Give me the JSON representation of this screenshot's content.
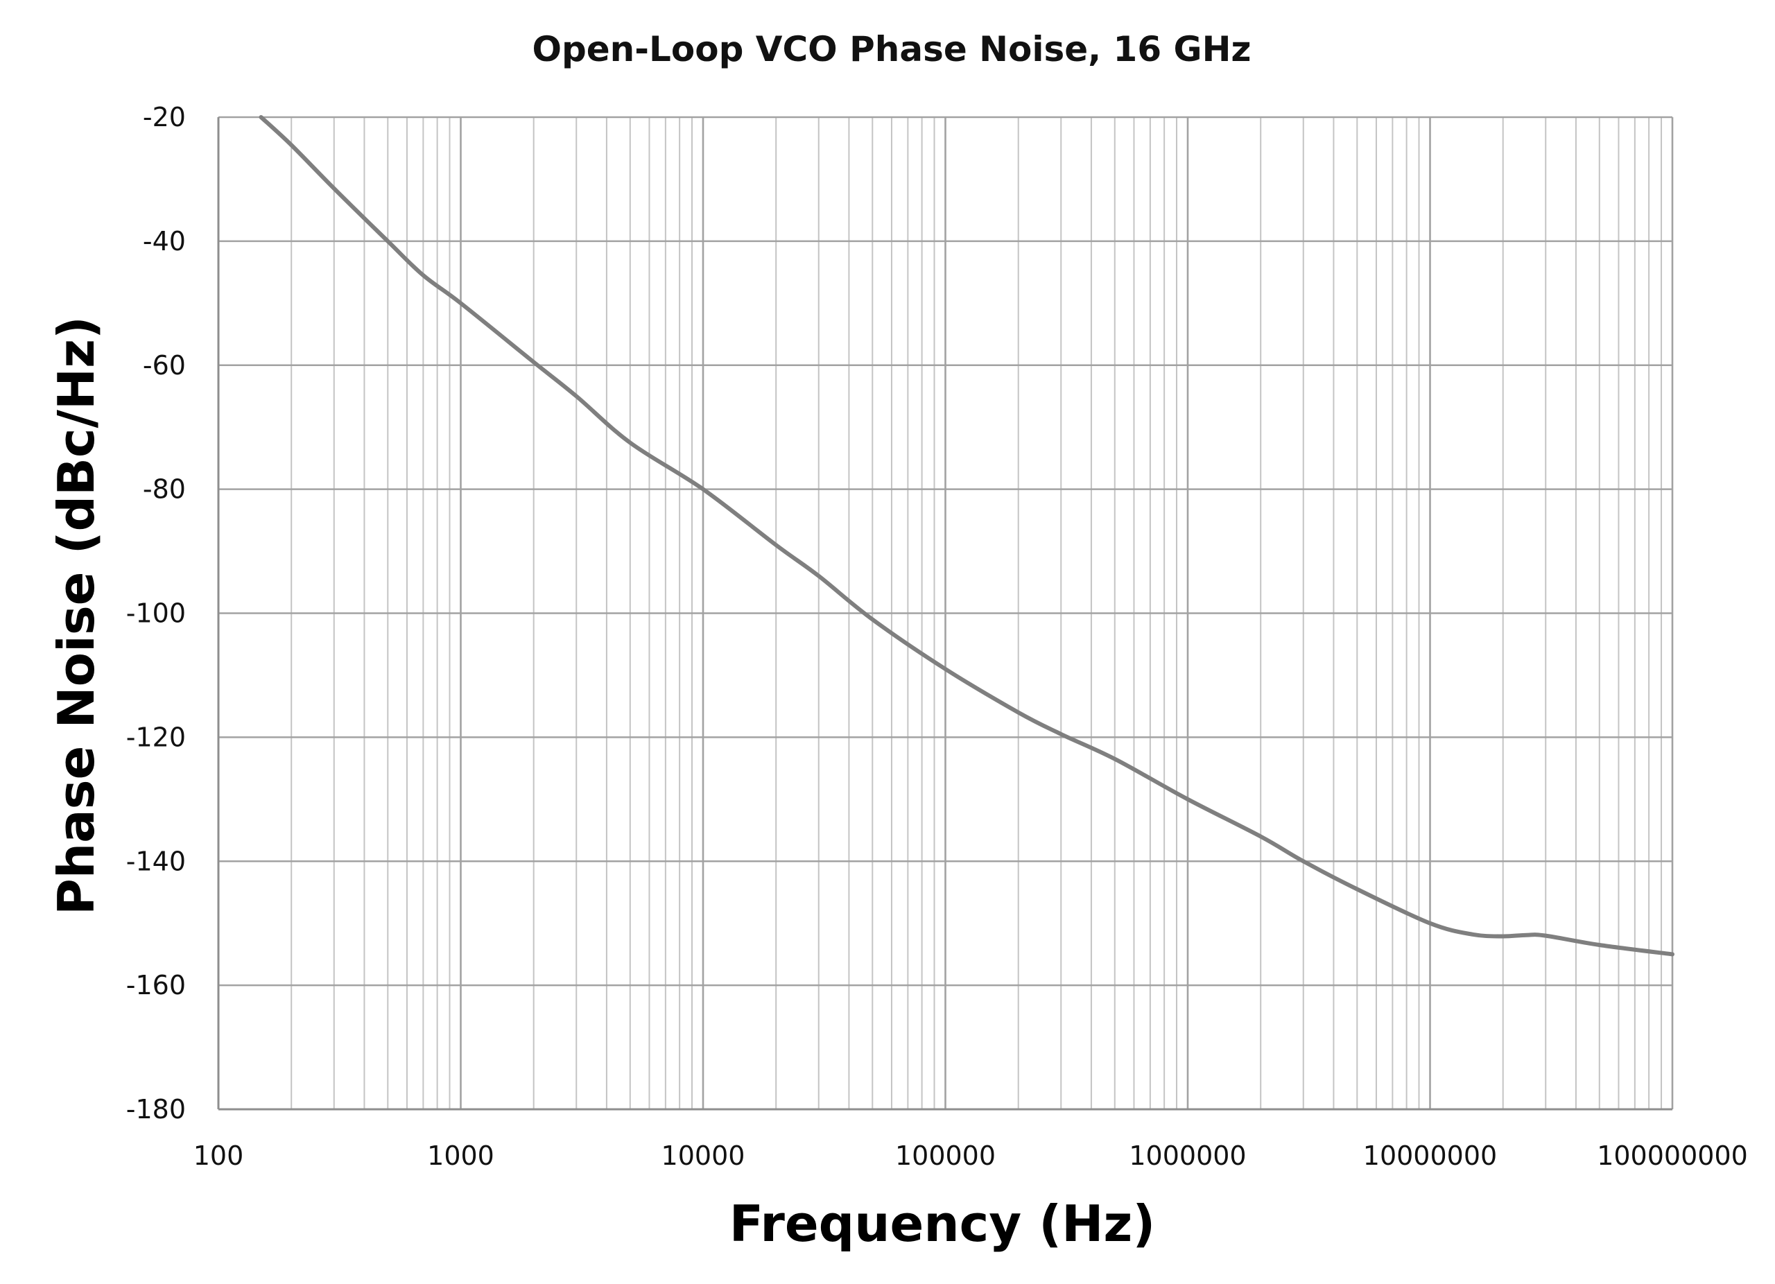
{
  "chart_data": {
    "type": "line",
    "title": "Open-Loop VCO Phase Noise, 16 GHz",
    "xlabel": "Frequency (Hz)",
    "ylabel": "Phase Noise (dBc/Hz)",
    "x_scale": "log",
    "xlim": [
      100,
      100000000
    ],
    "ylim": [
      -180,
      -20
    ],
    "x_ticks": [
      "100",
      "1000",
      "10000",
      "100000",
      "1000000",
      "10000000",
      "100000000"
    ],
    "y_ticks": [
      "-20",
      "-40",
      "-60",
      "-80",
      "-100",
      "-120",
      "-140",
      "-160",
      "-180"
    ],
    "grid": true,
    "legend": "none",
    "line_color": "#7f7f7f",
    "series": [
      {
        "x": [
          150,
          200,
          300,
          500,
          700,
          1000,
          2000,
          3000,
          5000,
          10000,
          20000,
          30000,
          50000,
          100000,
          200000,
          300000,
          500000,
          1000000,
          2000000,
          3000000,
          5000000,
          10000000,
          15000000,
          20000000,
          25000000,
          30000000,
          50000000,
          100000000
        ],
        "y": [
          -20,
          -24.5,
          -31.5,
          -40,
          -45.5,
          -50,
          -59.5,
          -65,
          -72.5,
          -80,
          -89,
          -94,
          -101,
          -109,
          -116,
          -119.5,
          -123.5,
          -130,
          -136,
          -140,
          -144.5,
          -150,
          -151.8,
          -152.1,
          -151.9,
          -152,
          -153.5,
          -155
        ]
      }
    ]
  }
}
